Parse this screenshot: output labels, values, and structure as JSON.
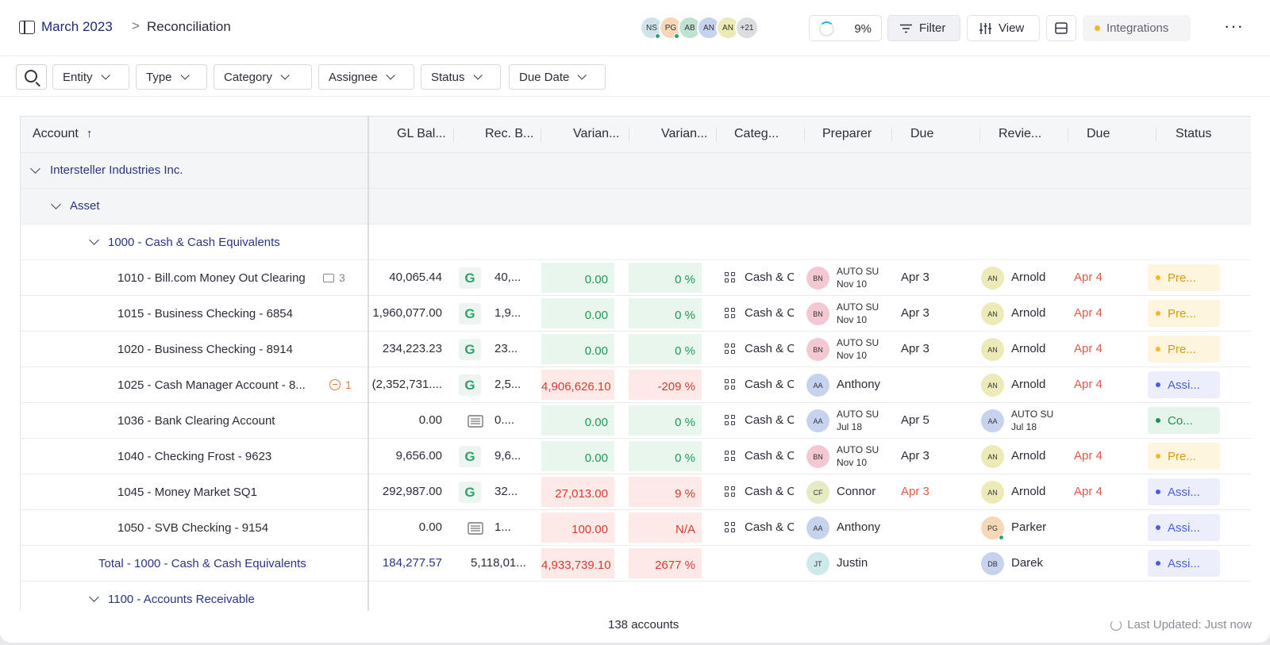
{
  "breadcrumb": {
    "parent": "March 2023",
    "separator": ">",
    "current": "Reconciliation"
  },
  "avatars": [
    {
      "initials": "NS",
      "color": "#cfe4ea",
      "online": true
    },
    {
      "initials": "PG",
      "color": "#f6d8b8",
      "online": true
    },
    {
      "initials": "AB",
      "color": "#bfe3d3",
      "online": false
    },
    {
      "initials": "AN",
      "color": "#c7d3ee",
      "online": false
    },
    {
      "initials": "AN",
      "color": "#ecebb8",
      "online": false
    },
    {
      "initials": "+21",
      "color": "#dcdde1",
      "online": false
    }
  ],
  "toolbar": {
    "progress": "9%",
    "filter": "Filter",
    "view": "View",
    "integrations": "Integrations",
    "more": "···"
  },
  "filters": [
    "Entity",
    "Type",
    "Category",
    "Assignee",
    "Status",
    "Due Date"
  ],
  "columns": {
    "account": "Account",
    "gl_balance": "GL Bal...",
    "rec_balance": "Rec. B...",
    "variance": "Varian...",
    "variance_pct": "Varian...",
    "category": "Categ...",
    "preparer": "Preparer",
    "prep_due": "Due",
    "reviewer": "Revie...",
    "rev_due": "Due",
    "status": "Status"
  },
  "groups": {
    "entity": "Intersteller Industries Inc.",
    "type": "Asset",
    "category": "1000 - Cash & Cash Equivalents",
    "next_category": "1100 - Accounts Receivable"
  },
  "rows": [
    {
      "account": "1010 - Bill.com Money Out Clearing",
      "badge": "3",
      "badge_type": "comment",
      "gl": "40,065.44",
      "src": "G",
      "rec": "40,...",
      "var": "0.00",
      "var_pct": "0 %",
      "var_state": "ok",
      "category": "Cash & C",
      "prep_initials": "BN",
      "prep_color": "#f3c8d2",
      "prep_name": "",
      "prep_auto": [
        "AUTO SU",
        "Nov 10"
      ],
      "prep_due": "Apr 3",
      "prep_due_late": false,
      "rev_initials": "AN",
      "rev_color": "#ecebb8",
      "rev_name": "Arnold",
      "rev_auto": null,
      "rev_online": false,
      "rev_due": "Apr 4",
      "status": "Pre...",
      "status_type": "prep"
    },
    {
      "account": "1015 - Business Checking - 6854",
      "badge": "",
      "badge_type": "",
      "gl": "1,960,077.00",
      "src": "G",
      "rec": "1,9...",
      "var": "0.00",
      "var_pct": "0 %",
      "var_state": "ok",
      "category": "Cash & C",
      "prep_initials": "BN",
      "prep_color": "#f3c8d2",
      "prep_name": "",
      "prep_auto": [
        "AUTO SU",
        "Nov 10"
      ],
      "prep_due": "Apr 3",
      "prep_due_late": false,
      "rev_initials": "AN",
      "rev_color": "#ecebb8",
      "rev_name": "Arnold",
      "rev_auto": null,
      "rev_online": false,
      "rev_due": "Apr 4",
      "status": "Pre...",
      "status_type": "prep"
    },
    {
      "account": "1020 - Business Checking - 8914",
      "badge": "",
      "badge_type": "",
      "gl": "234,223.23",
      "src": "G",
      "rec": "23...",
      "var": "0.00",
      "var_pct": "0 %",
      "var_state": "ok",
      "category": "Cash & C",
      "prep_initials": "BN",
      "prep_color": "#f3c8d2",
      "prep_name": "",
      "prep_auto": [
        "AUTO SU",
        "Nov 10"
      ],
      "prep_due": "Apr 3",
      "prep_due_late": false,
      "rev_initials": "AN",
      "rev_color": "#ecebb8",
      "rev_name": "Arnold",
      "rev_auto": null,
      "rev_online": false,
      "rev_due": "Apr 4",
      "status": "Pre...",
      "status_type": "prep"
    },
    {
      "account": "1025 - Cash Manager Account - 8...",
      "badge": "1",
      "badge_type": "warn",
      "gl": "(2,352,731....",
      "src": "G",
      "rec": "2,5...",
      "var": "4,906,626.10",
      "var_pct": "-209 %",
      "var_state": "bad",
      "category": "Cash & C",
      "prep_initials": "AA",
      "prep_color": "#c7d3ee",
      "prep_name": "Anthony",
      "prep_auto": null,
      "prep_due": "",
      "prep_due_late": false,
      "rev_initials": "AN",
      "rev_color": "#ecebb8",
      "rev_name": "Arnold",
      "rev_auto": null,
      "rev_online": false,
      "rev_due": "Apr 4",
      "status": "Assi...",
      "status_type": "assi"
    },
    {
      "account": "1036 - Bank Clearing Account",
      "badge": "",
      "badge_type": "",
      "gl": "0.00",
      "src": "doc",
      "rec": "0....",
      "var": "0.00",
      "var_pct": "0 %",
      "var_state": "ok",
      "category": "Cash & C",
      "prep_initials": "AA",
      "prep_color": "#c7d3ee",
      "prep_name": "",
      "prep_auto": [
        "AUTO SU",
        "Jul 18"
      ],
      "prep_due": "Apr 5",
      "prep_due_late": false,
      "rev_initials": "AA",
      "rev_color": "#c7d3ee",
      "rev_name": "",
      "rev_auto": [
        "AUTO SU",
        "Jul 18"
      ],
      "rev_online": false,
      "rev_due": "",
      "status": "Co...",
      "status_type": "comp"
    },
    {
      "account": "1040 - Checking Frost - 9623",
      "badge": "",
      "badge_type": "",
      "gl": "9,656.00",
      "src": "G",
      "rec": "9,6...",
      "var": "0.00",
      "var_pct": "0 %",
      "var_state": "ok",
      "category": "Cash & C",
      "prep_initials": "BN",
      "prep_color": "#f3c8d2",
      "prep_name": "",
      "prep_auto": [
        "AUTO SU",
        "Nov 10"
      ],
      "prep_due": "Apr 3",
      "prep_due_late": false,
      "rev_initials": "AN",
      "rev_color": "#ecebb8",
      "rev_name": "Arnold",
      "rev_auto": null,
      "rev_online": false,
      "rev_due": "Apr 4",
      "status": "Pre...",
      "status_type": "prep"
    },
    {
      "account": "1045 - Money Market SQ1",
      "badge": "",
      "badge_type": "",
      "gl": "292,987.00",
      "src": "G",
      "rec": "32...",
      "var": "27,013.00",
      "var_pct": "9 %",
      "var_state": "bad",
      "category": "Cash & C",
      "prep_initials": "CF",
      "prep_color": "#e6ebc4",
      "prep_name": "Connor",
      "prep_auto": null,
      "prep_due": "Apr 3",
      "prep_due_late": true,
      "rev_initials": "AN",
      "rev_color": "#ecebb8",
      "rev_name": "Arnold",
      "rev_auto": null,
      "rev_online": false,
      "rev_due": "Apr 4",
      "status": "Assi...",
      "status_type": "assi"
    },
    {
      "account": "1050 - SVB Checking - 9154",
      "badge": "",
      "badge_type": "",
      "gl": "0.00",
      "src": "doc",
      "rec": "1...",
      "var": "100.00",
      "var_pct": "N/A",
      "var_state": "bad",
      "category": "Cash & C",
      "prep_initials": "AA",
      "prep_color": "#c7d3ee",
      "prep_name": "Anthony",
      "prep_auto": null,
      "prep_due": "",
      "prep_due_late": false,
      "rev_initials": "PG",
      "rev_color": "#f6d8b8",
      "rev_name": "Parker",
      "rev_auto": null,
      "rev_online": true,
      "rev_due": "",
      "status": "Assi...",
      "status_type": "assi"
    }
  ],
  "total": {
    "label": "Total - 1000 - Cash & Cash Equivalents",
    "gl": "184,277.57",
    "rec": "5,118,01...",
    "var": "4,933,739.10",
    "var_pct": "2677 %",
    "prep_initials": "JT",
    "prep_color": "#cde9ea",
    "prep_name": "Justin",
    "rev_initials": "DB",
    "rev_color": "#c7d3ee",
    "rev_name": "Darek",
    "status": "Assi..."
  },
  "footer": {
    "count": "138 accounts",
    "updated": "Last Updated: Just now"
  },
  "colors": {
    "brand": "#1e2a78",
    "positive": "#1c9a55",
    "negative": "#d83b2f",
    "late": "#e05a45"
  }
}
